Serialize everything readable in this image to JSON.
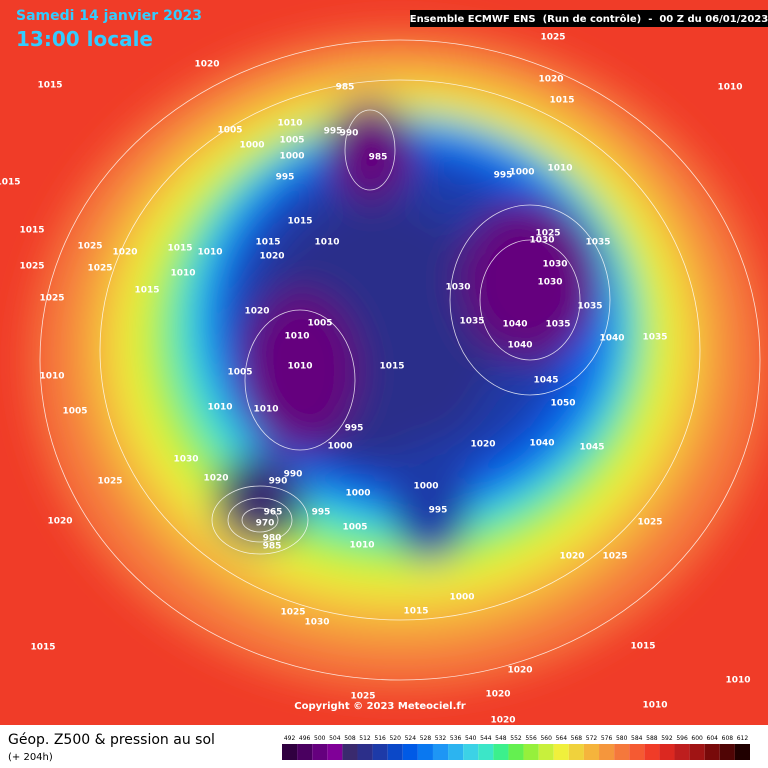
{
  "header": {
    "date": "Samedi 14 janvier 2023",
    "time": "13:00 locale",
    "run": "Ensemble ECMWF ENS  (Run de contrôle)  -  00 Z du 06/01/2023"
  },
  "map": {
    "copyright": "Copyright © 2023 Meteociel.fr",
    "isobar_labels": [
      1020,
      1015,
      985,
      1025,
      1020,
      1015,
      1010,
      1005,
      1010,
      995,
      990,
      1000,
      1005,
      1000,
      985,
      995,
      995,
      1000,
      1010,
      1015,
      1015,
      1015,
      1025,
      1020,
      1015,
      1010,
      1015,
      1010,
      1020,
      1030,
      1025,
      1035,
      1025,
      1025,
      1015,
      1010,
      1030,
      1030,
      1030,
      1035,
      1025,
      1020,
      1005,
      1035,
      1040,
      1035,
      1010,
      1040,
      1040,
      1035,
      1005,
      1010,
      1015,
      1010,
      1045,
      1010,
      1010,
      1050,
      1005,
      995,
      1000,
      1020,
      1040,
      1045,
      1030,
      1025,
      1020,
      990,
      990,
      1000,
      1000,
      995,
      995,
      965,
      970,
      980,
      985,
      1005,
      1010,
      1020,
      1025,
      1020,
      1025,
      1015,
      1000,
      1025,
      1030,
      1015,
      1015,
      1020,
      1025,
      1020,
      1020,
      1010,
      1010
    ]
  },
  "footer": {
    "title": "Géop. Z500 & pression au sol",
    "lead": "(+ 204h)"
  },
  "legend": {
    "values": [
      492,
      496,
      500,
      504,
      508,
      512,
      516,
      520,
      524,
      528,
      532,
      536,
      540,
      544,
      548,
      552,
      556,
      560,
      564,
      568,
      572,
      576,
      580,
      584,
      588,
      592,
      596,
      600,
      604,
      608,
      612
    ],
    "colors": [
      "#300040",
      "#4a0060",
      "#65007e",
      "#800098",
      "#3a2a6e",
      "#2c2f8a",
      "#1d3aa8",
      "#0b48c8",
      "#005ae6",
      "#0a78f0",
      "#1e96f5",
      "#2cb4f0",
      "#3cd2e6",
      "#3ce6c8",
      "#3cf08c",
      "#64f050",
      "#96f03c",
      "#c8f03c",
      "#f0f03c",
      "#f0d23c",
      "#f5b43c",
      "#f5963c",
      "#f5783c",
      "#f55a32",
      "#f03c28",
      "#dc2820",
      "#be1e1e",
      "#a01414",
      "#780a0a",
      "#500505",
      "#200000"
    ]
  }
}
